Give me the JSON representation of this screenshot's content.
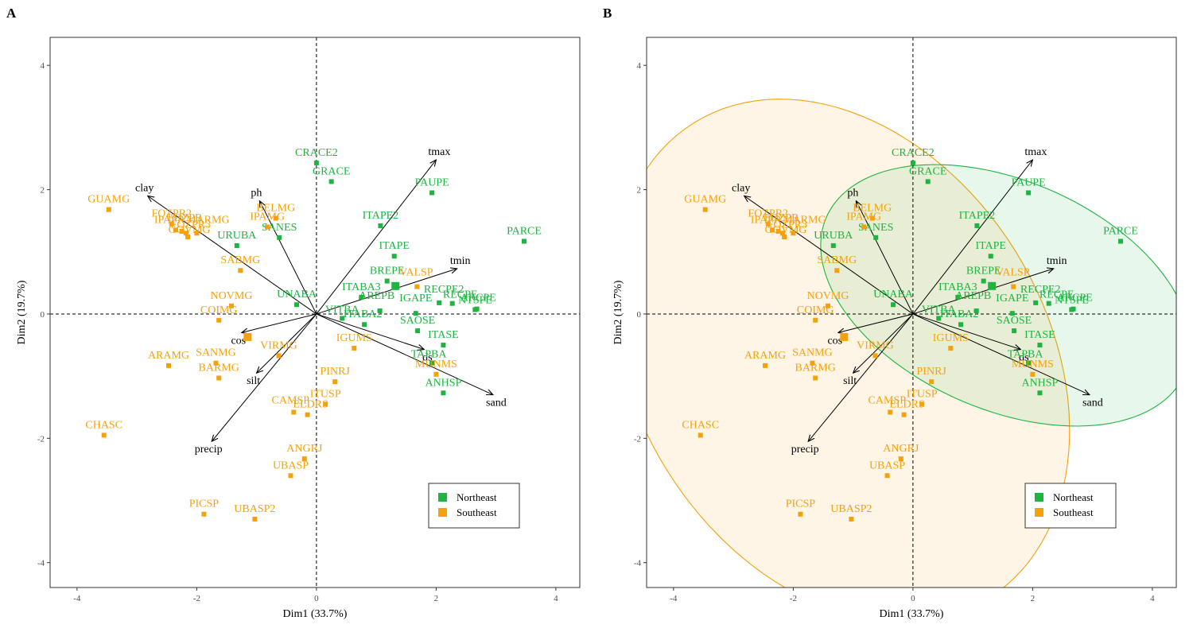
{
  "figure": {
    "colors": {
      "Northeast": "#1db440",
      "Southeast": "#f5a10c"
    }
  },
  "chart_data": [
    {
      "type": "scatter",
      "panel_label": "A",
      "xlabel": "Dim1 (33.7%)",
      "ylabel": "Dim2 (19.7%)",
      "xlim": [
        -4.45,
        4.4
      ],
      "ylim": [
        -4.4,
        4.45
      ],
      "xticks": [
        -4,
        -2,
        0,
        2,
        4
      ],
      "yticks": [
        -4,
        -2,
        0,
        2,
        4
      ],
      "xtick_labels": [
        "-4",
        "-2",
        "0",
        "2",
        "4"
      ],
      "ytick_labels": [
        "-4",
        "-2",
        "0",
        "2",
        "4"
      ],
      "grid": false,
      "ellipses": false,
      "legend_position": "bottom-right",
      "legend": [
        "Northeast",
        "Southeast"
      ],
      "series": [
        {
          "name": "Northeast",
          "points": [
            {
              "label": "CRACE2",
              "x": 0.0,
              "y": 2.43
            },
            {
              "label": "GRACE",
              "x": 0.25,
              "y": 2.13
            },
            {
              "label": "PAUPE",
              "x": 1.93,
              "y": 1.95
            },
            {
              "label": "ITAPE2",
              "x": 1.07,
              "y": 1.42
            },
            {
              "label": "PARCE",
              "x": 3.47,
              "y": 1.17
            },
            {
              "label": "SANES",
              "x": -0.62,
              "y": 1.23
            },
            {
              "label": "URUBA",
              "x": -1.33,
              "y": 1.1
            },
            {
              "label": "ITAPE",
              "x": 1.3,
              "y": 0.93
            },
            {
              "label": "BREPE",
              "x": 1.18,
              "y": 0.53
            },
            {
              "label": "ITABA3",
              "x": 0.75,
              "y": 0.27
            },
            {
              "label": "UNABA",
              "x": -0.33,
              "y": 0.15
            },
            {
              "label": "VITBA",
              "x": 0.43,
              "y": -0.07
            },
            {
              "label": "AREPB",
              "x": 1.06,
              "y": 0.05
            },
            {
              "label": "ITABA2",
              "x": 0.8,
              "y": -0.17
            },
            {
              "label": "IGAPE",
              "x": 1.66,
              "y": 0.01
            },
            {
              "label": "RECPE2",
              "x": 2.05,
              "y": 0.18
            },
            {
              "label": "RECPE",
              "x": 2.27,
              "y": 0.17
            },
            {
              "label": "NTSPE",
              "x": 2.68,
              "y": 0.08
            },
            {
              "label": "ARCPE",
              "x": 2.65,
              "y": 0.07
            },
            {
              "label": "SAOSE",
              "x": 1.69,
              "y": -0.27
            },
            {
              "label": "ITASE",
              "x": 2.12,
              "y": -0.5
            },
            {
              "label": "TAPBA",
              "x": 1.93,
              "y": -0.79
            },
            {
              "label": "ANHSP",
              "x": 2.12,
              "y": -1.27
            }
          ]
        },
        {
          "name": "Southeast",
          "points": [
            {
              "label": "GUAMG",
              "x": -3.47,
              "y": 1.68
            },
            {
              "label": "FOZPR2",
              "x": -2.42,
              "y": 1.45
            },
            {
              "label": "IPAPR",
              "x": -2.35,
              "y": 1.35
            },
            {
              "label": "FOZPR",
              "x": -2.25,
              "y": 1.33
            },
            {
              "label": "FOZPR3",
              "x": -2.18,
              "y": 1.3
            },
            {
              "label": "GOVMG",
              "x": -2.15,
              "y": 1.24
            },
            {
              "label": "MARMG",
              "x": -2.0,
              "y": 1.3
            },
            {
              "label": "BELMG",
              "x": -0.68,
              "y": 1.54
            },
            {
              "label": "IPAMG",
              "x": -0.82,
              "y": 1.4
            },
            {
              "label": "SABMG",
              "x": -1.27,
              "y": 0.7
            },
            {
              "label": "VALSP",
              "x": 1.68,
              "y": 0.44
            },
            {
              "label": "NOVMG",
              "x": -1.42,
              "y": 0.13
            },
            {
              "label": "COIMG",
              "x": -1.63,
              "y": -0.1
            },
            {
              "label": "ARAMG",
              "x": -2.47,
              "y": -0.83
            },
            {
              "label": "SANMG",
              "x": -1.68,
              "y": -0.79
            },
            {
              "label": "BARMG",
              "x": -1.63,
              "y": -1.03
            },
            {
              "label": "VIRMG",
              "x": -0.63,
              "y": -0.67
            },
            {
              "label": "IGUMS",
              "x": 0.63,
              "y": -0.55
            },
            {
              "label": "MUNMS",
              "x": 2.0,
              "y": -0.97
            },
            {
              "label": "PINRJ",
              "x": 0.31,
              "y": -1.09
            },
            {
              "label": "ITUSP",
              "x": 0.15,
              "y": -1.45
            },
            {
              "label": "CAMSP",
              "x": -0.38,
              "y": -1.58
            },
            {
              "label": "ELDRS",
              "x": -0.15,
              "y": -1.62
            },
            {
              "label": "CHASC",
              "x": -3.55,
              "y": -1.95
            },
            {
              "label": "ANGRJ",
              "x": -0.2,
              "y": -2.33
            },
            {
              "label": "UBASP",
              "x": -0.43,
              "y": -2.6
            },
            {
              "label": "PICSP",
              "x": -1.88,
              "y": -3.22
            },
            {
              "label": "UBASP2",
              "x": -1.03,
              "y": -3.3
            }
          ]
        }
      ],
      "centroids": [
        {
          "name": "Northeast",
          "x": 1.32,
          "y": 0.45
        },
        {
          "name": "Southeast",
          "x": -1.15,
          "y": -0.37
        }
      ],
      "vectors": [
        {
          "label": "tmax",
          "x": 2.0,
          "y": 2.48
        },
        {
          "label": "clay",
          "x": -2.82,
          "y": 1.9
        },
        {
          "label": "ph",
          "x": -0.95,
          "y": 1.82
        },
        {
          "label": "tmin",
          "x": 2.35,
          "y": 0.73
        },
        {
          "label": "cos",
          "x": -1.25,
          "y": -0.3
        },
        {
          "label": "ds",
          "x": 1.8,
          "y": -0.57
        },
        {
          "label": "sand",
          "x": 2.95,
          "y": -1.3
        },
        {
          "label": "silt",
          "x": -1.0,
          "y": -0.95
        },
        {
          "label": "precip",
          "x": -1.75,
          "y": -2.05
        }
      ]
    },
    {
      "type": "scatter",
      "panel_label": "B",
      "xlabel": "Dim1 (33.7%)",
      "ylabel": "Dim2 (19.7%)",
      "xlim": [
        -4.45,
        4.4
      ],
      "ylim": [
        -4.4,
        4.45
      ],
      "xticks": [
        -4,
        -2,
        0,
        2,
        4
      ],
      "yticks": [
        -4,
        -2,
        0,
        2,
        4
      ],
      "xtick_labels": [
        "-4",
        "-2",
        "0",
        "2",
        "4"
      ],
      "ytick_labels": [
        "-4",
        "-2",
        "0",
        "2",
        "4"
      ],
      "grid": false,
      "ellipses": true,
      "legend_position": "bottom-right",
      "legend": [
        "Northeast",
        "Southeast"
      ],
      "confidence_ellipses": [
        {
          "name": "Northeast",
          "center": [
            1.55,
            0.3
          ],
          "semi_major": 3.25,
          "semi_minor": 1.85,
          "angle_deg": -22
        },
        {
          "name": "Southeast",
          "center": [
            -1.2,
            -0.75
          ],
          "semi_major": 4.55,
          "semi_minor": 3.4,
          "angle_deg": -55
        }
      ],
      "series_same_as_panel": "A"
    }
  ]
}
